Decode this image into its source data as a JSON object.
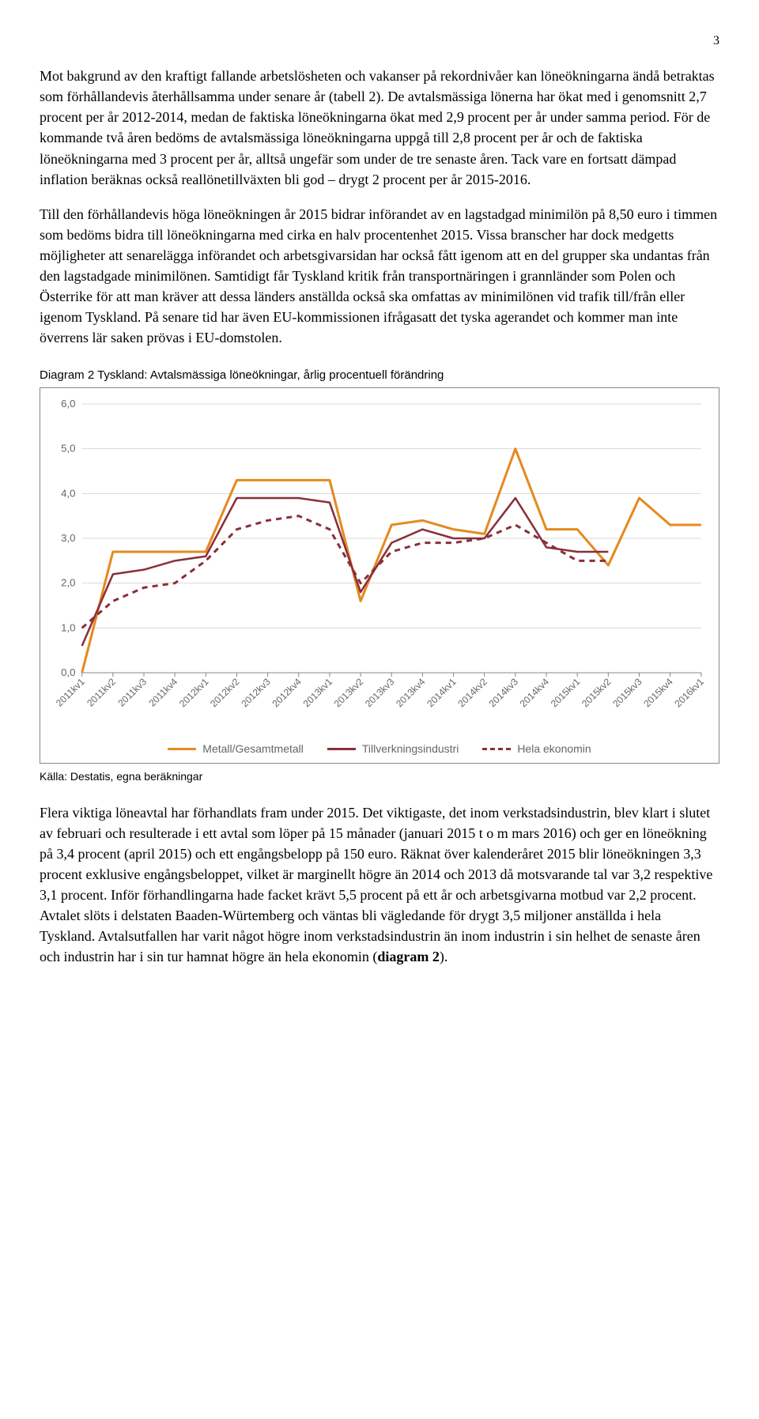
{
  "page_number": "3",
  "para1": "Mot bakgrund av den kraftigt fallande arbetslösheten och vakanser på rekordnivåer kan löneökningarna ändå betraktas som förhållandevis återhållsamma under senare år (tabell 2). De avtalsmässiga lönerna har ökat med i genomsnitt 2,7 procent per år 2012-2014, medan de faktiska löneökningarna ökat med 2,9 procent per år under samma period. För de kommande två åren bedöms de avtalsmässiga löneökningarna uppgå till 2,8 procent per år och de faktiska löneökningarna med 3 procent per år, alltså ungefär som under de tre senaste åren. Tack vare en fortsatt dämpad inflation beräknas också reallönetillväxten bli god – drygt 2 procent per år 2015-2016.",
  "para2": "Till den förhållandevis höga löneökningen år 2015 bidrar införandet av en lagstadgad minimilön på 8,50 euro i timmen som bedöms bidra till löneökningarna med cirka en halv procentenhet 2015. Vissa branscher har dock medgetts möjligheter att senarelägga införandet och arbetsgivarsidan har också fått igenom att en del grupper ska undantas från den lagstadgade minimilönen. Samtidigt får Tyskland kritik från transportnäringen i grannländer som Polen och Österrike för att man kräver att dessa länders anställda också ska omfattas av minimilönen vid trafik till/från eller igenom Tyskland. På senare tid har även EU-kommissionen ifrågasatt det tyska agerandet och kommer man inte överrens lär saken prövas i EU-domstolen.",
  "chart_title": "Diagram 2 Tyskland: Avtalsmässiga löneökningar, årlig procentuell förändring",
  "source": "Källa: Destatis, egna beräkningar",
  "para3_a": "Flera viktiga löneavtal har förhandlats fram under 2015. Det viktigaste, det inom verkstadsindustrin, blev klart i slutet av februari och resulterade i ett avtal som löper på 15 månader (januari 2015 t o m mars 2016) och ger en löneökning på 3,4 procent (april 2015) och ett engångsbelopp på 150 euro. Räknat över kalenderåret 2015 blir löneökningen 3,3 procent exklusive engångsbeloppet, vilket är marginellt högre än 2014 och 2013 då motsvarande tal var 3,2 respektive 3,1 procent. Inför förhandlingarna hade facket krävt 5,5 procent på ett år och arbetsgivarna motbud var 2,2 procent. Avtalet slöts i delstaten Baaden-Würtemberg och väntas bli vägledande för drygt 3,5 miljoner anställda i hela Tyskland. Avtalsutfallen har varit något högre inom verkstadsindustrin än inom industrin i sin helhet de senaste åren och industrin har i sin tur hamnat högre än hela ekonomin (",
  "para3_bold": "diagram 2",
  "para3_b": ").",
  "chart": {
    "type": "line",
    "ylim": [
      0,
      6
    ],
    "ytick_step": 1.0,
    "background_color": "#ffffff",
    "grid_color": "#d9d9d9",
    "axis_color": "#888888",
    "label_color": "#666666",
    "x_labels": [
      "2011kv1",
      "2011kv2",
      "2011kv3",
      "2011kv4",
      "2012kv1",
      "2012kv2",
      "2012kv3",
      "2012kv4",
      "2013kv1",
      "2013kv2",
      "2013kv3",
      "2013kv4",
      "2014kv1",
      "2014kv2",
      "2014kv3",
      "2014kv4",
      "2015kv1",
      "2015kv2",
      "2015kv3",
      "2015kv4",
      "2016kv1"
    ],
    "series": [
      {
        "name": "Metall/Gesamtmetall",
        "color": "#e58a1f",
        "width": 3,
        "dash": "",
        "values": [
          0.0,
          2.7,
          2.7,
          2.7,
          2.7,
          4.3,
          4.3,
          4.3,
          4.3,
          1.6,
          3.3,
          3.4,
          3.2,
          3.1,
          5.0,
          3.2,
          3.2,
          2.4,
          3.9,
          3.3,
          3.3
        ]
      },
      {
        "name": "Tillverkningsindustri",
        "color": "#8a2f3a",
        "width": 2.5,
        "dash": "",
        "values": [
          0.6,
          2.2,
          2.3,
          2.5,
          2.6,
          3.9,
          3.9,
          3.9,
          3.8,
          1.8,
          2.9,
          3.2,
          3.0,
          3.0,
          3.9,
          2.8,
          2.7,
          2.7
        ]
      },
      {
        "name": "Hela ekonomin",
        "color": "#8a2f3a",
        "width": 3,
        "dash": "7,6",
        "values": [
          1.0,
          1.6,
          1.9,
          2.0,
          2.5,
          3.2,
          3.4,
          3.5,
          3.2,
          2.0,
          2.7,
          2.9,
          2.9,
          3.0,
          3.3,
          2.9,
          2.5,
          2.5
        ]
      }
    ],
    "legend": [
      {
        "label": "Metall/Gesamtmetall",
        "color": "#e58a1f",
        "dash": "solid"
      },
      {
        "label": "Tillverkningsindustri",
        "color": "#8a2f3a",
        "dash": "solid"
      },
      {
        "label": "Hela ekonomin",
        "color": "#8a2f3a",
        "dash": "dashed"
      }
    ]
  }
}
